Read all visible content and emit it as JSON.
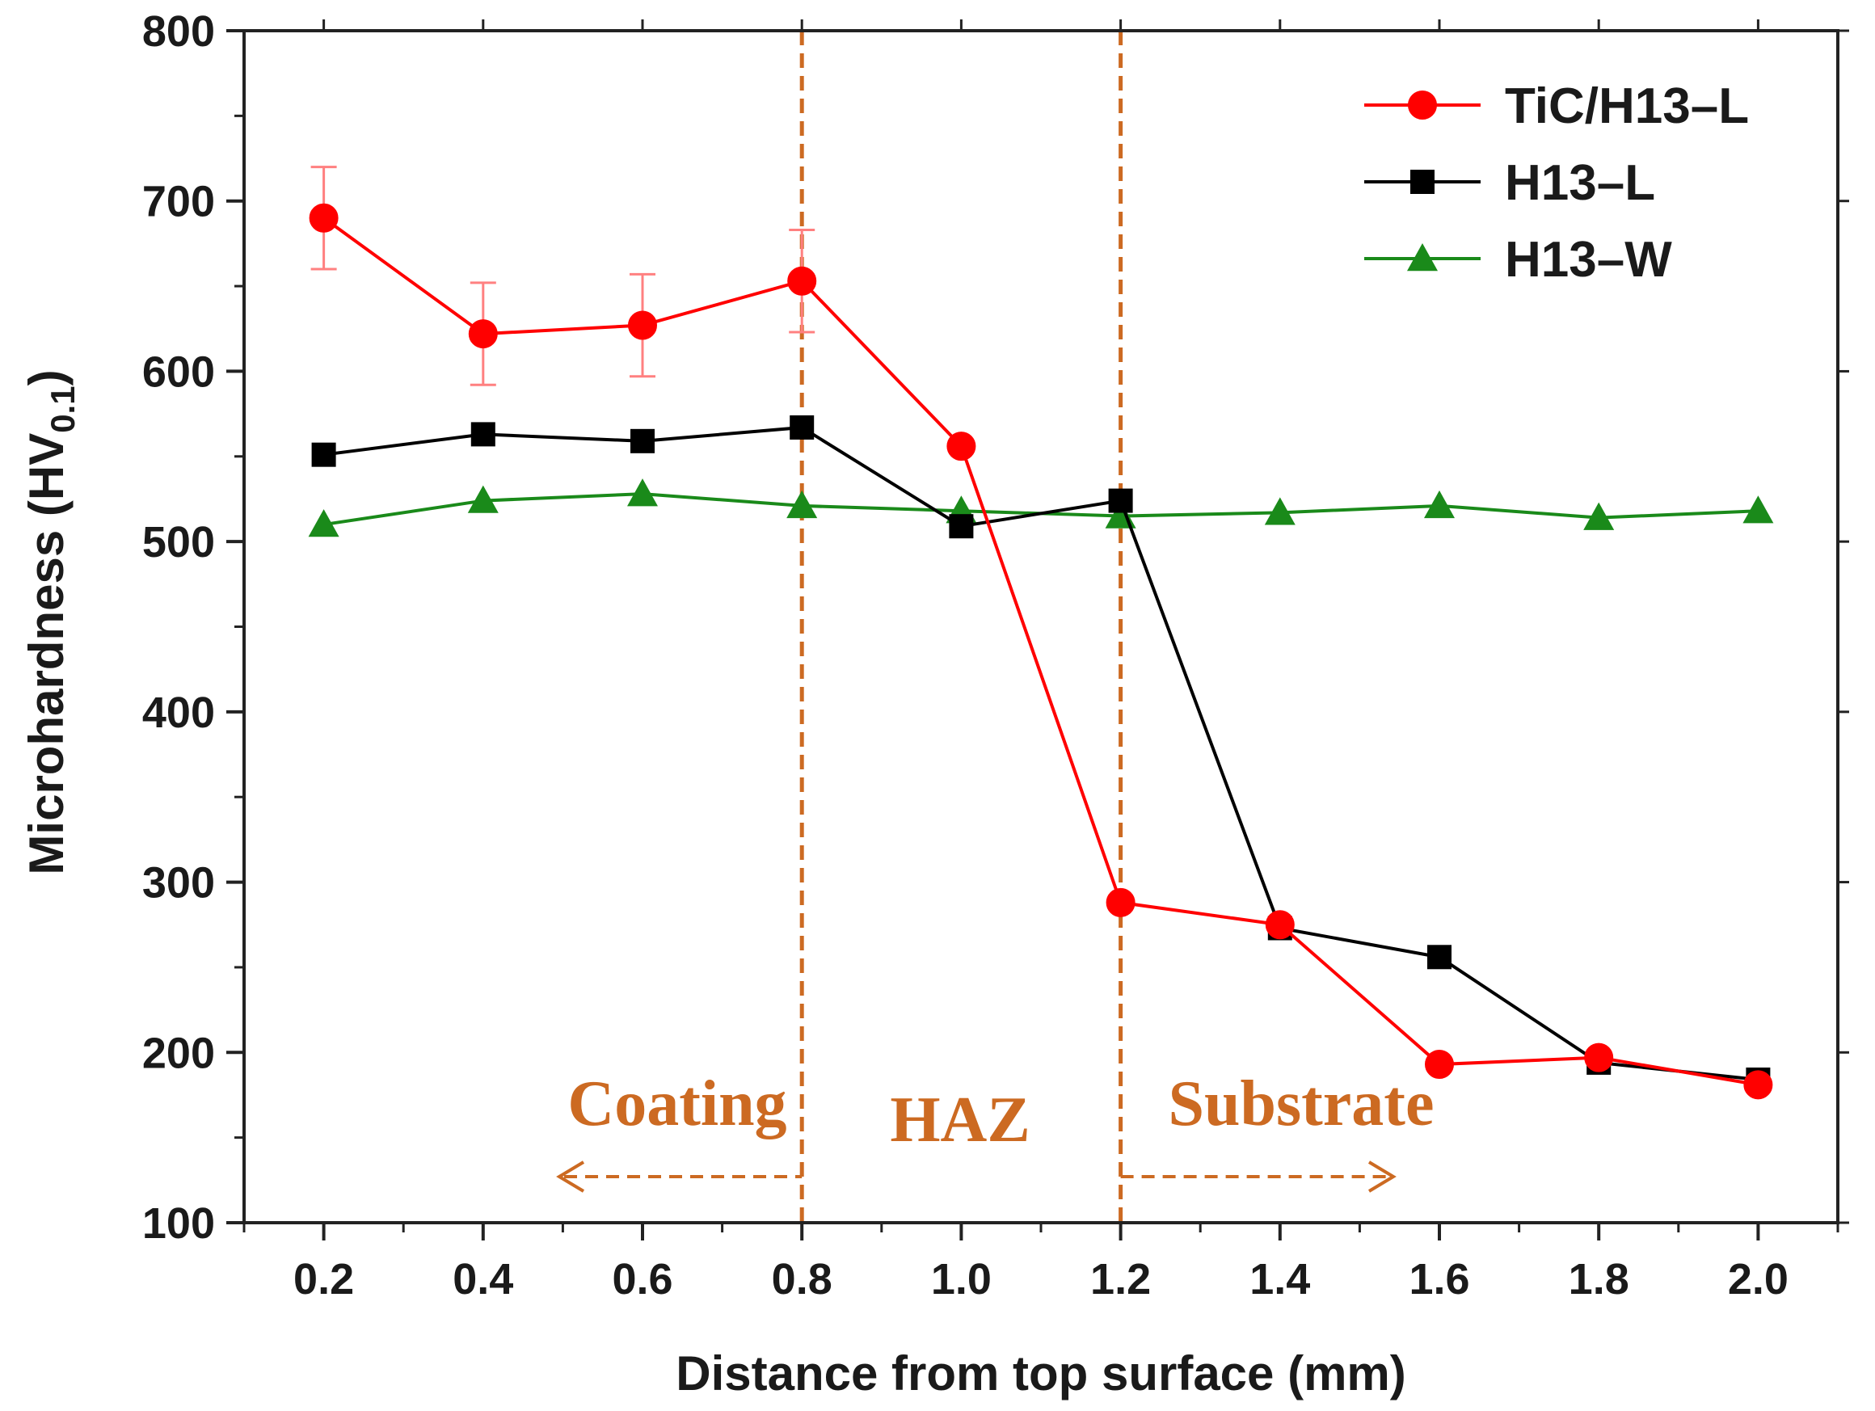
{
  "chart_data": {
    "type": "line",
    "xlabel": "Distance from top surface (mm)",
    "ylabel": {
      "main": "Microhardness (HV",
      "subscript": "0.1",
      "close": ")"
    },
    "xlim": [
      0.1,
      2.1
    ],
    "ylim": [
      100,
      800
    ],
    "x_ticks": [
      "0.2",
      "0.4",
      "0.6",
      "0.8",
      "1.0",
      "1.2",
      "1.4",
      "1.6",
      "1.8",
      "2.0"
    ],
    "y_ticks": [
      "100",
      "200",
      "300",
      "400",
      "500",
      "600",
      "700",
      "800"
    ],
    "grid": false,
    "legend_position": "top-right",
    "series": [
      {
        "name": "TiC/H13–L",
        "color": "#ff0000",
        "marker": "circle",
        "x": [
          0.2,
          0.4,
          0.6,
          0.8,
          1.0,
          1.2,
          1.4,
          1.6,
          1.8,
          2.0
        ],
        "values": [
          690,
          622,
          627,
          653,
          556,
          288,
          275,
          193,
          197,
          181
        ],
        "error": [
          30,
          30,
          30,
          30,
          null,
          null,
          null,
          null,
          null,
          null
        ]
      },
      {
        "name": "H13–L",
        "color": "#000000",
        "marker": "square",
        "x": [
          0.2,
          0.4,
          0.6,
          0.8,
          1.0,
          1.2,
          1.4,
          1.6,
          1.8,
          2.0
        ],
        "values": [
          551,
          563,
          559,
          567,
          509,
          524,
          273,
          256,
          194,
          184
        ]
      },
      {
        "name": "H13–W",
        "color": "#1a8a1a",
        "marker": "triangle",
        "x": [
          0.2,
          0.4,
          0.6,
          0.8,
          1.0,
          1.2,
          1.4,
          1.6,
          1.8,
          2.0
        ],
        "values": [
          510,
          524,
          528,
          521,
          518,
          515,
          517,
          521,
          514,
          518
        ]
      }
    ],
    "region_boundaries": [
      0.8,
      1.2
    ],
    "region_color": "#cc6a22",
    "annotations": {
      "coating": "Coating",
      "haz": "HAZ",
      "substrate": "Substrate"
    }
  }
}
